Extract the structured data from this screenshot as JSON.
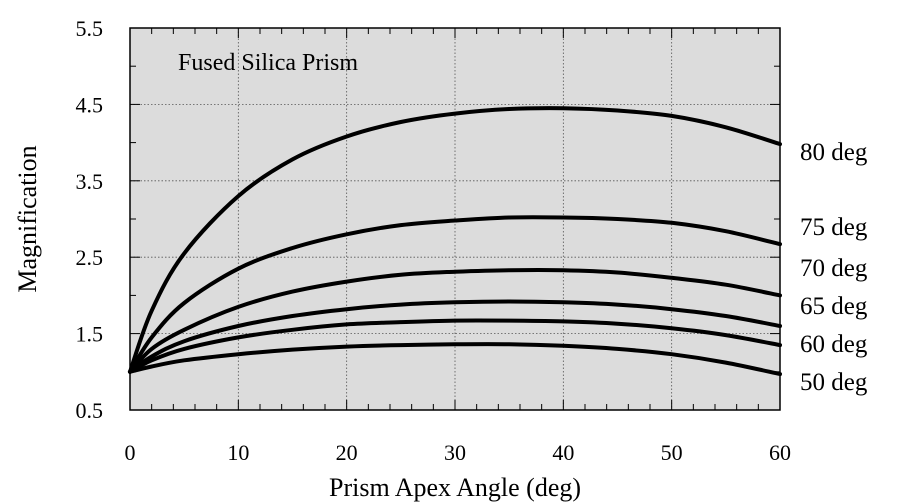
{
  "chart_data": {
    "type": "line",
    "title": "Fused Silica Prism",
    "xlabel": "Prism Apex Angle (deg)",
    "ylabel": "Magnification",
    "xlim": [
      0,
      60
    ],
    "ylim": [
      0.5,
      5.5
    ],
    "xticks": [
      0,
      10,
      20,
      30,
      40,
      50,
      60
    ],
    "yticks": [
      0.5,
      1.5,
      2.5,
      3.5,
      4.5,
      5.5
    ],
    "xtick_labels": [
      "0",
      "10",
      "20",
      "30",
      "40",
      "50",
      "60"
    ],
    "ytick_labels": [
      "0.5",
      "1.5",
      "2.5",
      "3.5",
      "4.5",
      "5.5"
    ],
    "grid": true,
    "background": "#dcdcdc",
    "line_color": "#000000",
    "legend": "none (series labeled at right end)",
    "series": [
      {
        "name": "80 deg",
        "x": [
          0,
          2,
          5,
          10,
          15,
          20,
          25,
          30,
          35,
          40,
          45,
          50,
          55,
          60
        ],
        "y": [
          1.0,
          1.8,
          2.55,
          3.3,
          3.78,
          4.08,
          4.27,
          4.38,
          4.44,
          4.45,
          4.42,
          4.35,
          4.2,
          3.98
        ]
      },
      {
        "name": "75 deg",
        "x": [
          0,
          2,
          5,
          10,
          15,
          20,
          25,
          30,
          35,
          40,
          45,
          50,
          55,
          60
        ],
        "y": [
          1.0,
          1.45,
          1.9,
          2.35,
          2.62,
          2.8,
          2.92,
          2.98,
          3.02,
          3.02,
          3.0,
          2.95,
          2.84,
          2.67
        ]
      },
      {
        "name": "70 deg",
        "x": [
          0,
          2,
          5,
          10,
          15,
          20,
          25,
          30,
          35,
          40,
          45,
          50,
          55,
          60
        ],
        "y": [
          1.0,
          1.3,
          1.55,
          1.85,
          2.05,
          2.18,
          2.27,
          2.31,
          2.33,
          2.33,
          2.3,
          2.23,
          2.14,
          2.0
        ]
      },
      {
        "name": "65 deg",
        "x": [
          0,
          2,
          5,
          10,
          15,
          20,
          25,
          30,
          35,
          40,
          45,
          50,
          55,
          60
        ],
        "y": [
          1.0,
          1.2,
          1.4,
          1.6,
          1.73,
          1.82,
          1.88,
          1.91,
          1.92,
          1.91,
          1.88,
          1.82,
          1.73,
          1.6
        ]
      },
      {
        "name": "60 deg",
        "x": [
          0,
          2,
          5,
          10,
          15,
          20,
          25,
          30,
          35,
          40,
          45,
          50,
          55,
          60
        ],
        "y": [
          1.0,
          1.15,
          1.3,
          1.45,
          1.55,
          1.62,
          1.65,
          1.67,
          1.67,
          1.66,
          1.63,
          1.57,
          1.48,
          1.35
        ]
      },
      {
        "name": "50 deg",
        "x": [
          0,
          2,
          5,
          10,
          15,
          20,
          25,
          30,
          35,
          40,
          45,
          50,
          55,
          60
        ],
        "y": [
          1.0,
          1.07,
          1.15,
          1.23,
          1.29,
          1.33,
          1.35,
          1.36,
          1.36,
          1.34,
          1.3,
          1.23,
          1.12,
          0.97
        ]
      }
    ]
  }
}
